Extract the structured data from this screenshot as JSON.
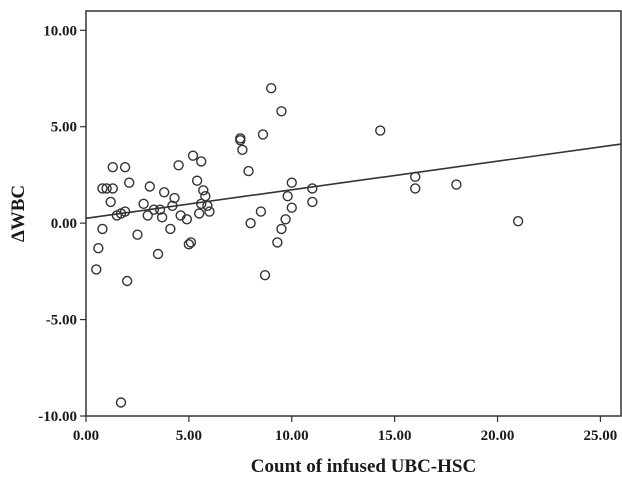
{
  "chart_data": {
    "type": "scatter",
    "xlabel": "Count of infused UBC-HSC",
    "ylabel": "ΔWBC",
    "xlim": [
      0,
      26
    ],
    "ylim": [
      -10,
      11
    ],
    "x_ticks": [
      0,
      5,
      10,
      15,
      20,
      25
    ],
    "y_ticks": [
      -10,
      -5,
      0,
      5,
      10
    ],
    "x_tick_labels": [
      "0.00",
      "5.00",
      "10.00",
      "15.00",
      "20.00",
      "25.00"
    ],
    "y_tick_labels": [
      "-10.00",
      "-5.00",
      "0.00",
      "5.00",
      "10.00"
    ],
    "grid": false,
    "points": [
      {
        "x": 0.5,
        "y": -2.4
      },
      {
        "x": 0.6,
        "y": -1.3
      },
      {
        "x": 0.8,
        "y": -0.3
      },
      {
        "x": 0.8,
        "y": 1.8
      },
      {
        "x": 1.0,
        "y": 1.8
      },
      {
        "x": 1.2,
        "y": 1.1
      },
      {
        "x": 1.3,
        "y": 1.8
      },
      {
        "x": 1.3,
        "y": 2.9
      },
      {
        "x": 1.5,
        "y": 0.4
      },
      {
        "x": 1.7,
        "y": -9.3
      },
      {
        "x": 1.7,
        "y": 0.5
      },
      {
        "x": 1.9,
        "y": 0.6
      },
      {
        "x": 1.9,
        "y": 2.9
      },
      {
        "x": 2.0,
        "y": -3.0
      },
      {
        "x": 2.1,
        "y": 2.1
      },
      {
        "x": 2.5,
        "y": -0.6
      },
      {
        "x": 2.8,
        "y": 1.0
      },
      {
        "x": 3.0,
        "y": 0.4
      },
      {
        "x": 3.1,
        "y": 1.9
      },
      {
        "x": 3.3,
        "y": 0.7
      },
      {
        "x": 3.5,
        "y": -1.6
      },
      {
        "x": 3.6,
        "y": 0.7
      },
      {
        "x": 3.7,
        "y": 0.3
      },
      {
        "x": 3.8,
        "y": 1.6
      },
      {
        "x": 4.1,
        "y": -0.3
      },
      {
        "x": 4.2,
        "y": 0.9
      },
      {
        "x": 4.3,
        "y": 1.3
      },
      {
        "x": 4.5,
        "y": 3.0
      },
      {
        "x": 4.6,
        "y": 0.4
      },
      {
        "x": 4.9,
        "y": 0.2
      },
      {
        "x": 5.0,
        "y": -1.1
      },
      {
        "x": 5.1,
        "y": -1.0
      },
      {
        "x": 5.2,
        "y": 3.5
      },
      {
        "x": 5.4,
        "y": 2.2
      },
      {
        "x": 5.5,
        "y": 0.5
      },
      {
        "x": 5.6,
        "y": 1.0
      },
      {
        "x": 5.6,
        "y": 3.2
      },
      {
        "x": 5.7,
        "y": 1.7
      },
      {
        "x": 5.8,
        "y": 1.4
      },
      {
        "x": 5.9,
        "y": 0.9
      },
      {
        "x": 6.0,
        "y": 0.6
      },
      {
        "x": 7.5,
        "y": 4.4
      },
      {
        "x": 7.5,
        "y": 4.3
      },
      {
        "x": 7.6,
        "y": 3.8
      },
      {
        "x": 7.9,
        "y": 2.7
      },
      {
        "x": 8.0,
        "y": 0.0
      },
      {
        "x": 8.5,
        "y": 0.6
      },
      {
        "x": 8.6,
        "y": 4.6
      },
      {
        "x": 8.7,
        "y": -2.7
      },
      {
        "x": 9.0,
        "y": 7.0
      },
      {
        "x": 9.3,
        "y": -1.0
      },
      {
        "x": 9.5,
        "y": 5.8
      },
      {
        "x": 9.5,
        "y": -0.3
      },
      {
        "x": 9.7,
        "y": 0.2
      },
      {
        "x": 9.8,
        "y": 1.4
      },
      {
        "x": 10.0,
        "y": 2.1
      },
      {
        "x": 10.0,
        "y": 0.8
      },
      {
        "x": 11.0,
        "y": 1.8
      },
      {
        "x": 11.0,
        "y": 1.1
      },
      {
        "x": 14.3,
        "y": 4.8
      },
      {
        "x": 16.0,
        "y": 2.4
      },
      {
        "x": 16.0,
        "y": 1.8
      },
      {
        "x": 18.0,
        "y": 2.0
      },
      {
        "x": 21.0,
        "y": 0.1
      }
    ],
    "fit_line": {
      "x": [
        0,
        26
      ],
      "y": [
        0.25,
        4.1
      ]
    }
  }
}
